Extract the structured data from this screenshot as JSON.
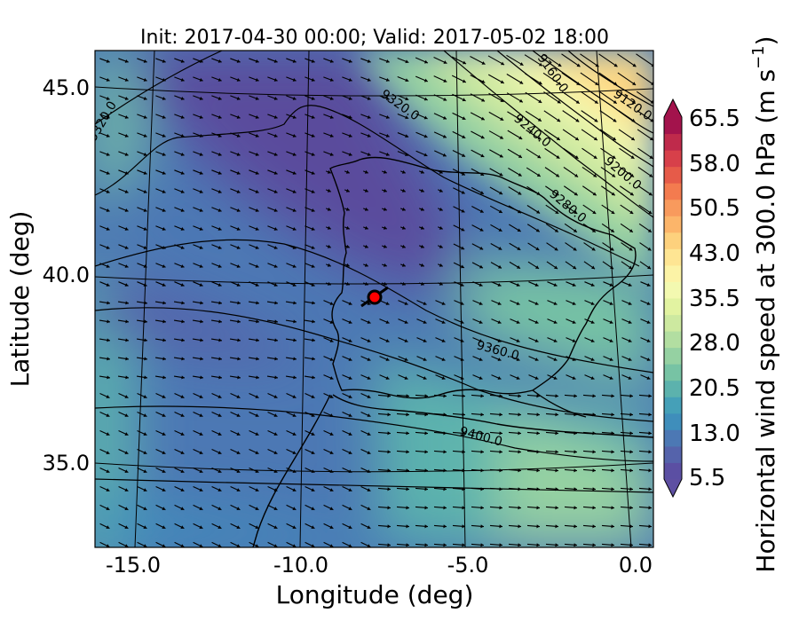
{
  "figure": {
    "title": "Init: 2017-04-30 00:00; Valid: 2017-05-02 18:00",
    "xlabel": "Longitude (deg)",
    "ylabel": "Latitude (deg)",
    "colorbar_label": "Horizontal wind speed at 300.0 hPa (m s",
    "colorbar_label_sup": "−1",
    "colorbar_label_end": ")"
  },
  "map_data": {
    "type": "map",
    "lon_range": [
      -16.0,
      0.5
    ],
    "lat_range": [
      32.5,
      46.0
    ],
    "x_ticks": [
      {
        "value": -15.0,
        "label": "-15.0"
      },
      {
        "value": -10.0,
        "label": "-10.0"
      },
      {
        "value": -5.0,
        "label": "-5.0"
      },
      {
        "value": 0.0,
        "label": "0.0"
      }
    ],
    "y_ticks": [
      {
        "value": 35.0,
        "label": "35.0"
      },
      {
        "value": 40.0,
        "label": "40.0"
      },
      {
        "value": 45.0,
        "label": "45.0"
      }
    ],
    "colorbar": {
      "min": 5.5,
      "max": 65.5,
      "extend": "both",
      "tick_labels": [
        "5.5",
        "13.0",
        "20.5",
        "28.0",
        "35.5",
        "43.0",
        "50.5",
        "58.0",
        "65.5"
      ],
      "colors": [
        "#5b4fa3",
        "#5563ab",
        "#4c78b4",
        "#3f8ebb",
        "#45a0b8",
        "#5cb2ad",
        "#77c3a4",
        "#95d1a2",
        "#b2dea1",
        "#cde9a0",
        "#e2f3a1",
        "#f3f9b0",
        "#fcf3a6",
        "#fee593",
        "#fdd17d",
        "#fcb56a",
        "#f89a5d",
        "#f37b4f",
        "#e65b49",
        "#d7404a",
        "#bf2a4b",
        "#a3134c"
      ]
    },
    "contour_labels": [
      {
        "text": "9120.0"
      },
      {
        "text": "9160.0"
      },
      {
        "text": "9200.0"
      },
      {
        "text": "9240.0"
      },
      {
        "text": "9280.0"
      },
      {
        "text": "9320.0"
      },
      {
        "text": "9320.0"
      },
      {
        "text": "9360.0"
      },
      {
        "text": "9400.0"
      }
    ],
    "marker": {
      "lon": -7.7,
      "lat": 39.4,
      "color": "#ff0000"
    }
  }
}
